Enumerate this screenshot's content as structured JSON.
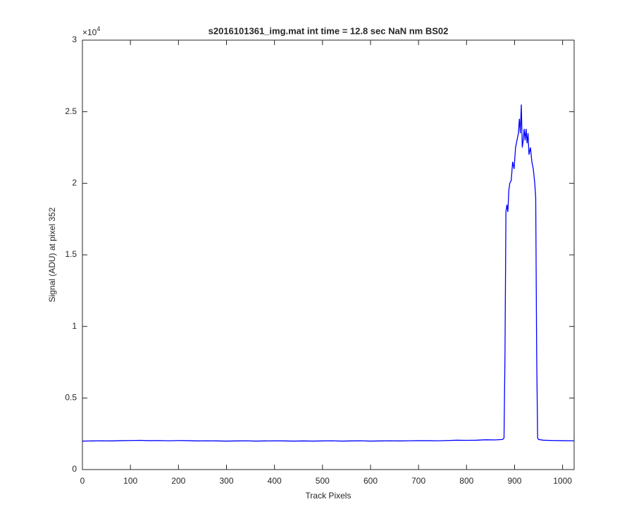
{
  "chart_data": {
    "type": "line",
    "title": "s2016101361_img.mat int time = 12.8 sec  NaN nm BS02",
    "x_label": "Track Pixels",
    "y_label": "Signal (ADU) at pixel 352",
    "y_multiplier": {
      "base": "×10",
      "exponent": "4"
    },
    "color": "#0000ff",
    "grid": false,
    "xlim": [
      0,
      1024
    ],
    "xticks": [
      0,
      100,
      200,
      300,
      400,
      500,
      600,
      700,
      800,
      900,
      1000
    ],
    "ylim": [
      0,
      30000
    ],
    "yticks": [
      0,
      {
        "value": 5000,
        "label": "0.5"
      },
      {
        "value": 10000,
        "label": "1"
      },
      {
        "value": 15000,
        "label": "1.5"
      },
      {
        "value": 20000,
        "label": "2"
      },
      {
        "value": 25000,
        "label": "2.5"
      },
      {
        "value": 30000,
        "label": "3"
      }
    ],
    "x": [
      0,
      20,
      40,
      60,
      80,
      100,
      120,
      140,
      160,
      180,
      200,
      220,
      240,
      260,
      280,
      300,
      320,
      340,
      360,
      380,
      400,
      420,
      440,
      460,
      480,
      500,
      520,
      540,
      560,
      580,
      600,
      620,
      640,
      660,
      680,
      700,
      720,
      740,
      760,
      780,
      800,
      820,
      840,
      860,
      875,
      878,
      880,
      882,
      884,
      886,
      888,
      890,
      893,
      896,
      899,
      902,
      905,
      908,
      910,
      912,
      914,
      916,
      918,
      920,
      922,
      924,
      926,
      928,
      930,
      933,
      936,
      939,
      942,
      944,
      946,
      948,
      950,
      960,
      980,
      1000,
      1024
    ],
    "values": [
      1990,
      2000,
      2010,
      2000,
      2020,
      2030,
      2040,
      2020,
      2030,
      2010,
      2030,
      2020,
      2000,
      2010,
      2000,
      1990,
      2000,
      2010,
      1990,
      2000,
      2010,
      2000,
      1990,
      2000,
      1990,
      2000,
      2010,
      1990,
      2000,
      2010,
      1990,
      2000,
      2010,
      2000,
      2010,
      2020,
      2020,
      2010,
      2030,
      2050,
      2040,
      2050,
      2080,
      2070,
      2100,
      2200,
      8000,
      18000,
      18500,
      18000,
      19500,
      20000,
      20200,
      21500,
      21000,
      22500,
      23000,
      23500,
      24500,
      23500,
      25500,
      22500,
      23000,
      23800,
      23000,
      23800,
      22800,
      23500,
      22000,
      22500,
      21500,
      21000,
      20000,
      19000,
      8000,
      2200,
      2100,
      2050,
      2030,
      2020,
      2010
    ]
  }
}
